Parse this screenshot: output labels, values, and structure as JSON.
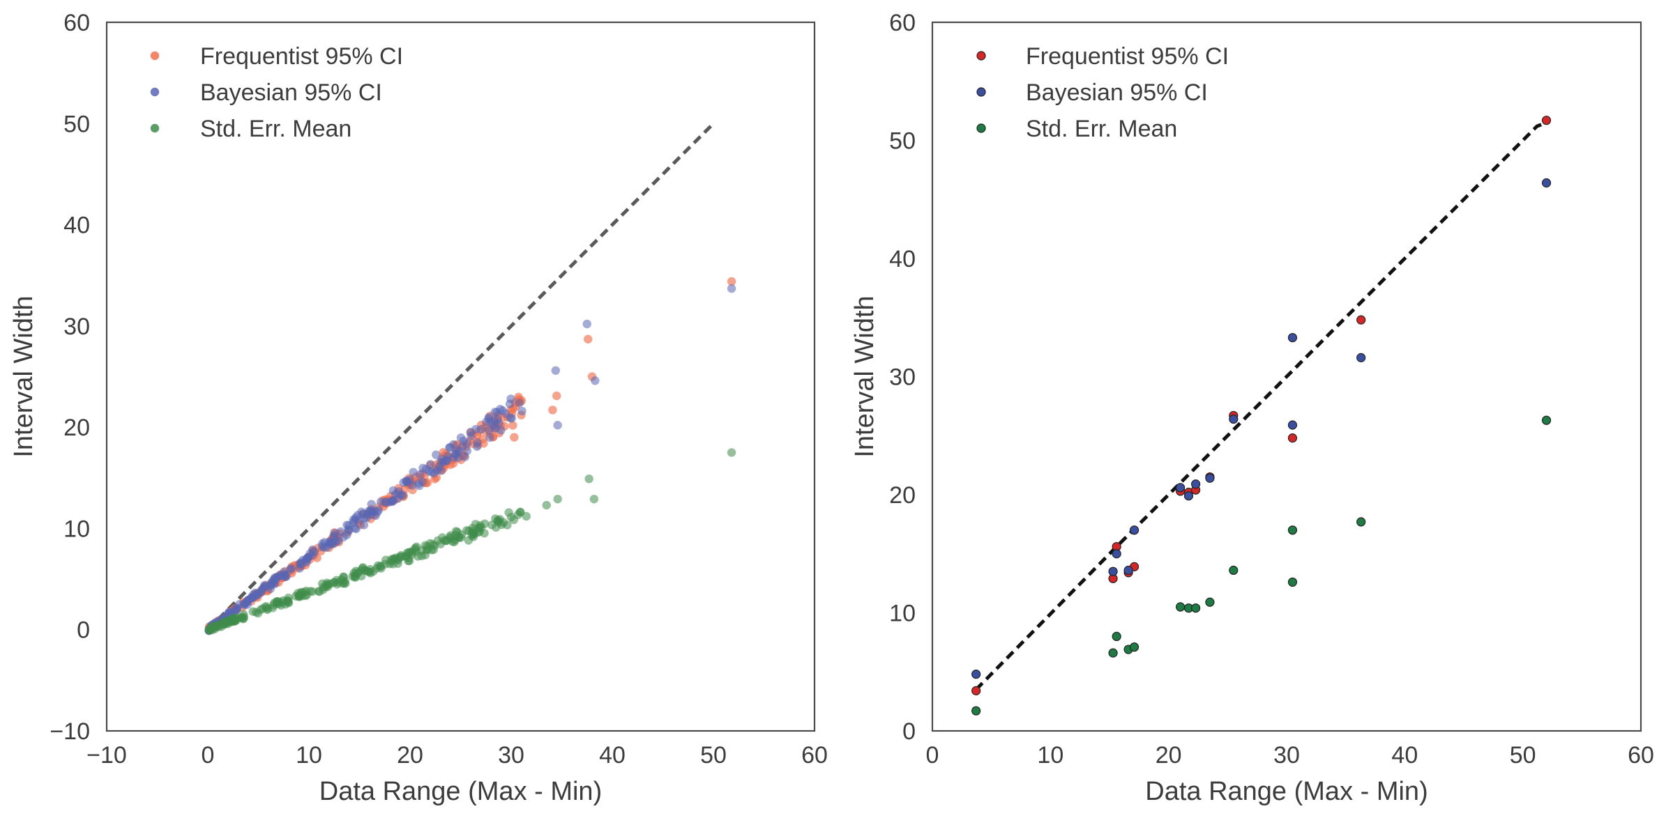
{
  "chart_data": [
    {
      "type": "scatter",
      "xlabel": "Data Range (Max - Min)",
      "ylabel": "Interval Width",
      "xlim": [
        -10,
        60
      ],
      "ylim": [
        -10,
        60
      ],
      "xticks": [
        "−10",
        "0",
        "10",
        "20",
        "30",
        "40",
        "50",
        "60"
      ],
      "yticks": [
        "−10",
        "0",
        "10",
        "20",
        "30",
        "40",
        "50",
        "60"
      ],
      "grid": false,
      "legend": "top-left",
      "reference_line": {
        "style": "dashed",
        "color": "#5a5a5a",
        "x": [
          0,
          10,
          20,
          30,
          34,
          40,
          50
        ],
        "y": [
          0,
          10,
          20,
          30,
          34,
          40,
          50
        ]
      },
      "series": [
        {
          "name": "Frequentist 95% CI",
          "color": "#f2704f",
          "alpha": 0.65,
          "slope": 0.71,
          "n": 230,
          "points": [
            [
              37.6,
              28.7
            ],
            [
              38.0,
              25.0
            ],
            [
              34.5,
              23.1
            ],
            [
              51.8,
              34.4
            ],
            [
              34.1,
              21.7
            ],
            [
              31.0,
              21.2
            ],
            [
              30.3,
              19.0
            ],
            [
              28.5,
              20.3
            ],
            [
              26.0,
              19.5
            ]
          ]
        },
        {
          "name": "Bayesian 95% CI",
          "color": "#5866b5",
          "alpha": 0.55,
          "slope": 0.72,
          "n": 230,
          "points": [
            [
              37.5,
              30.2
            ],
            [
              38.3,
              24.6
            ],
            [
              34.6,
              20.2
            ],
            [
              51.8,
              33.7
            ],
            [
              34.4,
              25.6
            ],
            [
              30.8,
              22.4
            ],
            [
              28.4,
              21.5
            ],
            [
              26.5,
              19.8
            ]
          ]
        },
        {
          "name": "Std. Err. Mean",
          "color": "#3f8c4a",
          "alpha": 0.55,
          "slope": 0.37,
          "n": 230,
          "points": [
            [
              37.7,
              14.9
            ],
            [
              38.2,
              12.9
            ],
            [
              34.6,
              12.9
            ],
            [
              51.8,
              17.5
            ],
            [
              33.5,
              12.3
            ],
            [
              31.5,
              11.2
            ],
            [
              28.5,
              10.1
            ],
            [
              25.6,
              9.8
            ]
          ]
        }
      ]
    },
    {
      "type": "scatter",
      "xlabel": "Data Range (Max - Min)",
      "ylabel": "Interval Width",
      "xlim": [
        0,
        60
      ],
      "ylim": [
        0,
        60
      ],
      "xticks": [
        "0",
        "10",
        "20",
        "30",
        "40",
        "50",
        "60"
      ],
      "yticks": [
        "0",
        "10",
        "20",
        "30",
        "40",
        "50",
        "60"
      ],
      "grid": false,
      "legend": "top-left",
      "reference_line": {
        "style": "dashed",
        "color": "#111111",
        "x": [
          3.7,
          15.6,
          21.7,
          30.5,
          36.3,
          51.2,
          52.0
        ],
        "y": [
          3.5,
          15.6,
          21.7,
          30.5,
          36.3,
          51.2,
          51.5
        ]
      },
      "series": [
        {
          "name": "Frequentist 95% CI",
          "color": "#d62728",
          "alpha": 1.0,
          "x": [
            3.7,
            15.3,
            15.6,
            16.6,
            17.1,
            21.0,
            21.7,
            22.3,
            23.5,
            25.5,
            30.5,
            36.3,
            52.0
          ],
          "y": [
            3.4,
            12.9,
            15.6,
            13.4,
            13.9,
            20.3,
            20.2,
            20.4,
            21.5,
            26.7,
            24.8,
            34.8,
            51.7
          ]
        },
        {
          "name": "Bayesian 95% CI",
          "color": "#3b4fa0",
          "alpha": 1.0,
          "x": [
            3.7,
            15.3,
            15.6,
            16.6,
            17.1,
            21.0,
            21.7,
            22.3,
            23.5,
            25.5,
            30.5,
            30.5,
            36.3,
            52.0
          ],
          "y": [
            4.8,
            13.5,
            15.0,
            13.6,
            17.0,
            20.6,
            19.9,
            20.9,
            21.4,
            26.4,
            25.9,
            33.3,
            31.6,
            46.4
          ]
        },
        {
          "name": "Std. Err. Mean",
          "color": "#1e7b43",
          "alpha": 1.0,
          "x": [
            3.7,
            15.3,
            15.6,
            16.6,
            17.1,
            21.0,
            21.7,
            22.3,
            23.5,
            25.5,
            30.5,
            30.5,
            36.3,
            52.0
          ],
          "y": [
            1.7,
            6.6,
            8.0,
            6.9,
            7.1,
            10.5,
            10.4,
            10.4,
            10.9,
            13.6,
            17.0,
            12.6,
            17.7,
            26.3
          ]
        }
      ]
    }
  ]
}
